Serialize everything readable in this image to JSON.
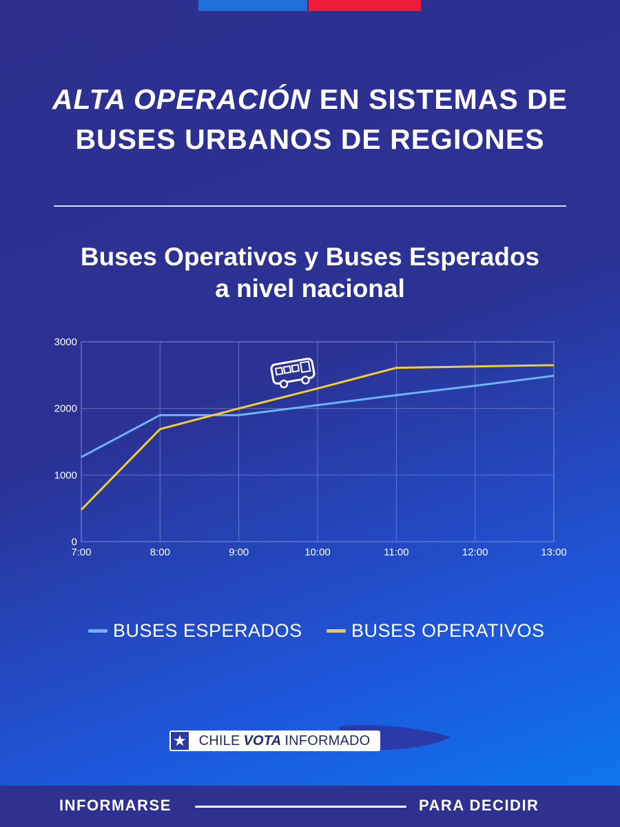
{
  "header": {
    "title_emphasis": "ALTA OPERACIÓN",
    "title_line1_rest": " EN SISTEMAS DE",
    "title_line2": "BUSES URBANOS DE REGIONES"
  },
  "colors": {
    "expected": "#6db4ff",
    "operative": "#f2cf2f",
    "flag_blue": "#1f6fd6",
    "flag_red": "#ee1b3b"
  },
  "chart_data": {
    "type": "line",
    "title_line1": "Buses Operativos y Buses Esperados",
    "title_line2": "a nivel nacional",
    "x": [
      "7:00",
      "8:00",
      "9:00",
      "10:00",
      "11:00",
      "12:00",
      "13:00"
    ],
    "series": [
      {
        "name": "BUSES ESPERADOS",
        "values": [
          1270,
          1900,
          1900,
          2050,
          2200,
          2340,
          2490
        ]
      },
      {
        "name": "BUSES OPERATIVOS",
        "values": [
          480,
          1690,
          2000,
          2300,
          2610,
          2630,
          2650
        ]
      }
    ],
    "yticks": [
      0,
      1000,
      2000,
      3000
    ],
    "ylim": [
      0,
      3000
    ],
    "grid": true,
    "icon": "bus-icon",
    "legend_position": "bottom"
  },
  "legend": {
    "expected_label": "BUSES ESPERADOS",
    "operative_label": "BUSES OPERATIVOS"
  },
  "logo": {
    "word1": "CHILE",
    "word2": "VOTA",
    "word3": "INFORMADO",
    "icon": "star-icon"
  },
  "footer": {
    "left": "INFORMARSE",
    "right": "PARA DECIDIR"
  }
}
